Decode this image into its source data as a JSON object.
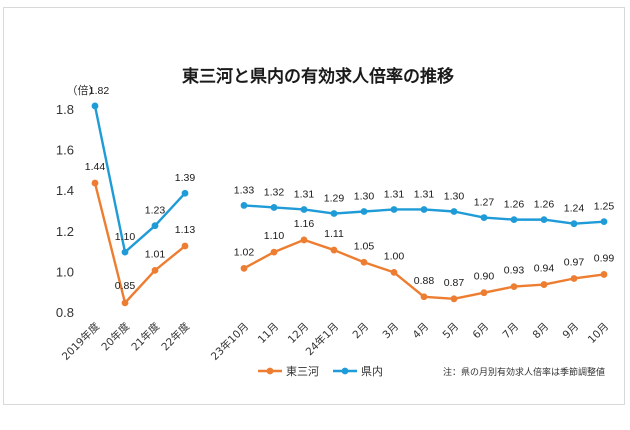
{
  "chart_data": {
    "type": "line",
    "title": "東三河と県内の有効求人倍率の推移",
    "unit": "（倍）",
    "ylim": [
      0.8,
      1.8
    ],
    "yticks": [
      "0.8",
      "1.0",
      "1.2",
      "1.4",
      "1.6",
      "1.8"
    ],
    "grid": false,
    "legend_position": "bottom-center",
    "note": "注：県の月別有効求人倍率は季節調整値",
    "categories": [
      "2019年度",
      "20年度",
      "21年度",
      "22年度",
      "23年10月",
      "11月",
      "12月",
      "24年1月",
      "2月",
      "3月",
      "4月",
      "5月",
      "6月",
      "7月",
      "8月",
      "9月",
      "10月"
    ],
    "segments": [
      [
        0,
        3
      ],
      [
        4,
        16
      ]
    ],
    "series": [
      {
        "name": "東三河",
        "color": "#ED7D31",
        "values": [
          1.44,
          0.85,
          1.01,
          1.13,
          1.02,
          1.1,
          1.16,
          1.11,
          1.05,
          1.0,
          0.88,
          0.87,
          0.9,
          0.93,
          0.94,
          0.97,
          0.99
        ],
        "labels": [
          "1.44",
          "0.85",
          "1.01",
          "1.13",
          "1.02",
          "1.10",
          "1.16",
          "1.11",
          "1.05",
          "1.00",
          "0.88",
          "0.87",
          "0.90",
          "0.93",
          "0.94",
          "0.97",
          "0.99"
        ]
      },
      {
        "name": "県内",
        "color": "#1F9BD7",
        "values": [
          1.82,
          1.1,
          1.23,
          1.39,
          1.33,
          1.32,
          1.31,
          1.29,
          1.3,
          1.31,
          1.31,
          1.3,
          1.27,
          1.26,
          1.26,
          1.24,
          1.25
        ],
        "labels": [
          "1.82",
          "1.10",
          "1.23",
          "1.39",
          "1.33",
          "1.32",
          "1.31",
          "1.29",
          "1.30",
          "1.31",
          "1.31",
          "1.30",
          "1.27",
          "1.26",
          "1.26",
          "1.24",
          "1.25"
        ]
      }
    ]
  }
}
